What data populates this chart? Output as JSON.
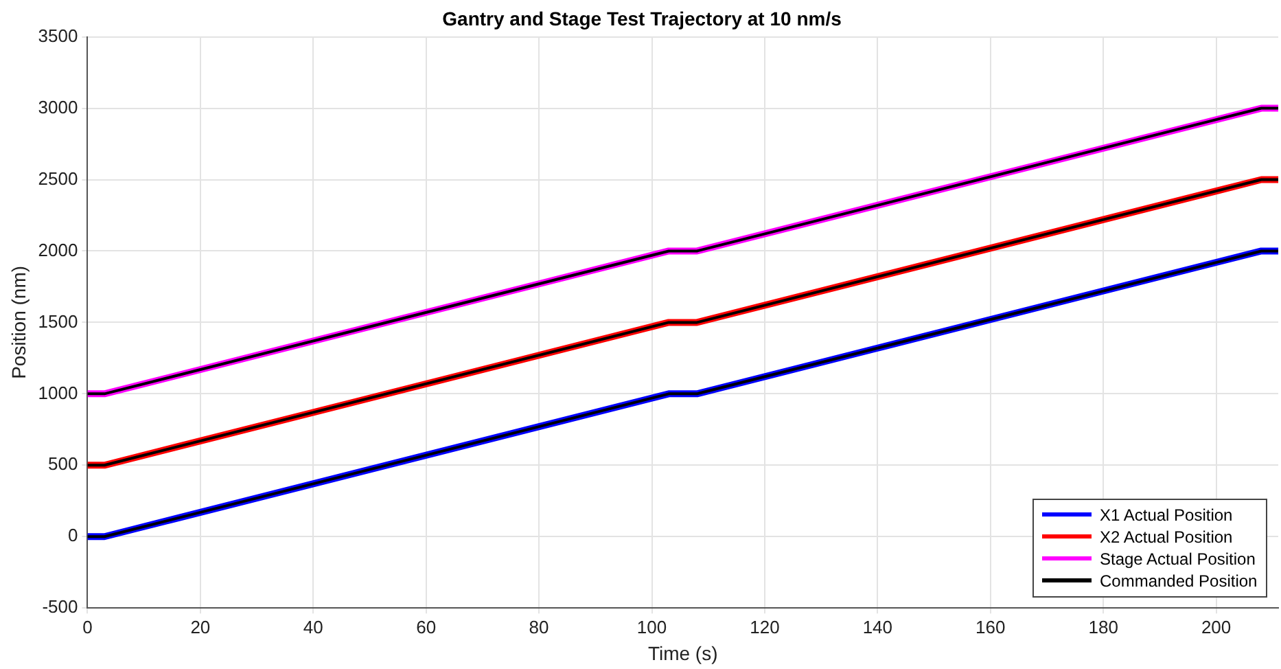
{
  "chart_data": {
    "type": "line",
    "title": "Gantry and Stage Test Trajectory at 10 nm/s",
    "xlabel": "Time (s)",
    "ylabel": "Position (nm)",
    "xlim": [
      0,
      211
    ],
    "xticks": [
      0,
      20,
      40,
      60,
      80,
      100,
      120,
      140,
      160,
      180,
      200
    ],
    "ylim": [
      -500,
      3500
    ],
    "yticks": [
      -500,
      0,
      500,
      1000,
      1500,
      2000,
      2500,
      3000,
      3500
    ],
    "grid": true,
    "legend": "bottom right",
    "marker": "none",
    "line_style": "solid",
    "series": [
      {
        "name": "X1 Actual Position",
        "color": "#0000ff",
        "x": [
          0,
          3,
          103,
          108,
          208,
          211
        ],
        "values": [
          0,
          0,
          1000,
          1000,
          2000,
          2000
        ]
      },
      {
        "name": "X2 Actual Position",
        "color": "#ff0000",
        "x": [
          0,
          3,
          103,
          108,
          208,
          211
        ],
        "values": [
          500,
          500,
          1500,
          1500,
          2500,
          2500
        ]
      },
      {
        "name": "Stage Actual Position",
        "color": "#ff00ff",
        "x": [
          0,
          3,
          103,
          108,
          208,
          211
        ],
        "values": [
          1000,
          1000,
          2000,
          2000,
          3000,
          3000
        ]
      },
      {
        "name": "Commanded Position",
        "color": "#000000",
        "x": [
          0,
          3,
          103,
          108,
          208,
          211
        ],
        "values": [
          0,
          0,
          1000,
          1000,
          2000,
          2000
        ]
      },
      {
        "color": "#000000",
        "x": [
          0,
          3,
          103,
          108,
          208,
          211
        ],
        "values": [
          500,
          500,
          1500,
          1500,
          2500,
          2500
        ]
      },
      {
        "color": "#000000",
        "x": [
          0,
          3,
          103,
          108,
          208,
          211
        ],
        "values": [
          1000,
          1000,
          2000,
          2000,
          3000,
          3000
        ]
      }
    ]
  }
}
